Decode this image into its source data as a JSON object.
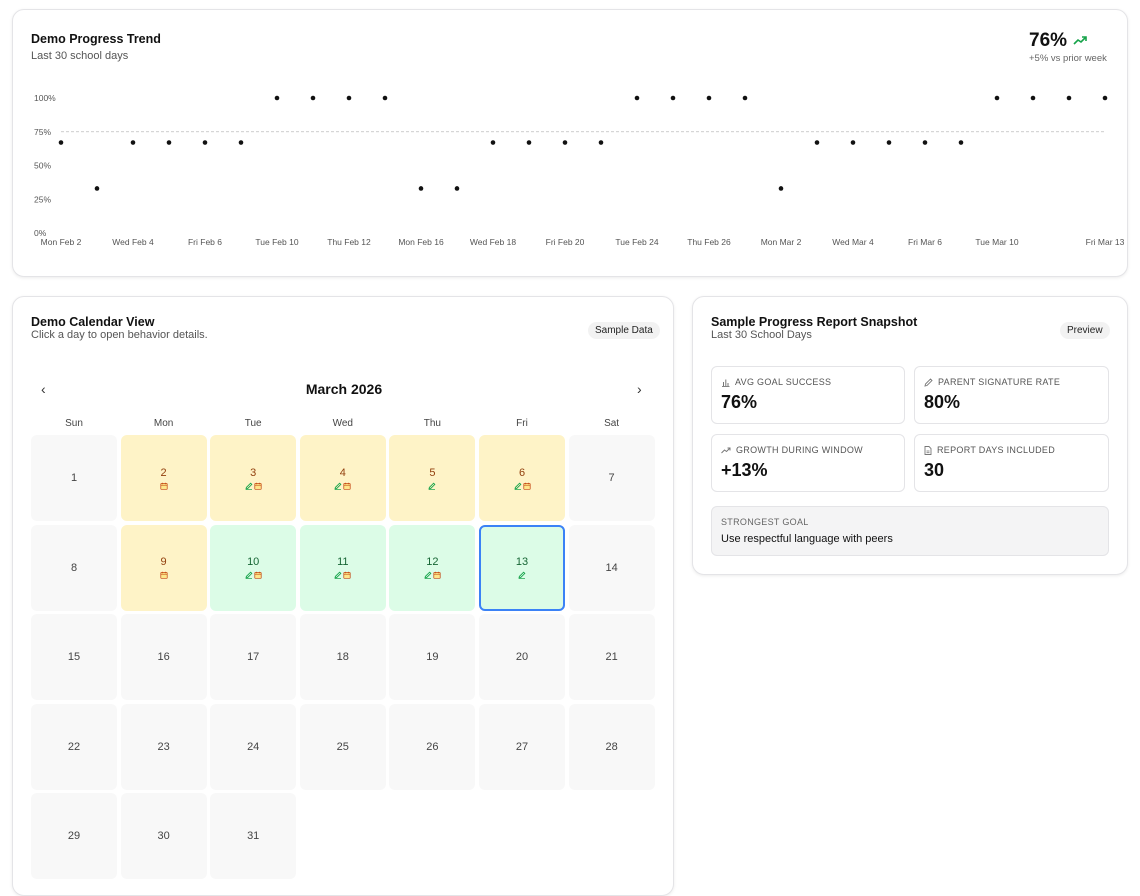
{
  "trend": {
    "title": "Demo Progress Trend",
    "subtitle": "Last 30 school days",
    "kpi_value": "76%",
    "kpi_delta": "+5% vs prior week",
    "trend_icon": "trending-up-icon",
    "colors": {
      "point": "#111111",
      "target_line": "#bdbdbd",
      "trend_up": "#16a34a"
    }
  },
  "chart_data": {
    "type": "scatter",
    "title": "Demo Progress Trend",
    "ylim": [
      0,
      100
    ],
    "yticks": [
      "0%",
      "25%",
      "50%",
      "75%",
      "100%"
    ],
    "target_line": 75,
    "grid": false,
    "x": [
      "Mon Feb 2",
      "Tue Feb 3",
      "Wed Feb 4",
      "Thu Feb 5",
      "Fri Feb 6",
      "Mon Feb 9",
      "Tue Feb 10",
      "Wed Feb 11",
      "Thu Feb 12",
      "Fri Feb 13",
      "Mon Feb 16",
      "Tue Feb 17",
      "Wed Feb 18",
      "Thu Feb 19",
      "Fri Feb 20",
      "Mon Feb 23",
      "Tue Feb 24",
      "Wed Feb 25",
      "Thu Feb 26",
      "Fri Feb 27",
      "Mon Mar 2",
      "Tue Mar 3",
      "Wed Mar 4",
      "Thu Mar 5",
      "Fri Mar 6",
      "Mon Mar 9",
      "Tue Mar 10",
      "Wed Mar 11",
      "Thu Mar 12",
      "Fri Mar 13"
    ],
    "x_tick_labels": [
      "Mon Feb 2",
      "Wed Feb 4",
      "Fri Feb 6",
      "Tue Feb 10",
      "Thu Feb 12",
      "Mon Feb 16",
      "Wed Feb 18",
      "Fri Feb 20",
      "Tue Feb 24",
      "Thu Feb 26",
      "Mon Mar 2",
      "Wed Mar 4",
      "Fri Mar 6",
      "Tue Mar 10",
      "Fri Mar 13"
    ],
    "values": [
      67,
      33,
      67,
      67,
      67,
      67,
      100,
      100,
      100,
      100,
      33,
      33,
      67,
      67,
      67,
      67,
      100,
      100,
      100,
      100,
      33,
      67,
      67,
      67,
      67,
      67,
      100,
      100,
      100,
      100
    ]
  },
  "calendar": {
    "title": "Demo Calendar View",
    "subtitle": "Click a day to open behavior details.",
    "badge": "Sample Data",
    "month": "March 2026",
    "prev": "‹",
    "next": "›",
    "weekdays": [
      "Sun",
      "Mon",
      "Tue",
      "Wed",
      "Thu",
      "Fri",
      "Sat"
    ],
    "first_weekday": 0,
    "days": [
      {
        "d": "1"
      },
      {
        "d": "2",
        "status": "yellow",
        "icons": [
          "calendar"
        ]
      },
      {
        "d": "3",
        "status": "yellow",
        "icons": [
          "pen",
          "calendar"
        ]
      },
      {
        "d": "4",
        "status": "yellow",
        "icons": [
          "pen",
          "calendar"
        ]
      },
      {
        "d": "5",
        "status": "yellow",
        "icons": [
          "pen"
        ]
      },
      {
        "d": "6",
        "status": "yellow",
        "icons": [
          "pen",
          "calendar"
        ]
      },
      {
        "d": "7"
      },
      {
        "d": "8"
      },
      {
        "d": "9",
        "status": "yellow",
        "icons": [
          "calendar"
        ]
      },
      {
        "d": "10",
        "status": "green",
        "icons": [
          "pen",
          "calendar"
        ]
      },
      {
        "d": "11",
        "status": "green",
        "icons": [
          "pen",
          "calendar"
        ]
      },
      {
        "d": "12",
        "status": "green",
        "icons": [
          "pen",
          "calendar"
        ]
      },
      {
        "d": "13",
        "status": "green",
        "icons": [
          "pen"
        ],
        "selected": true
      },
      {
        "d": "14"
      },
      {
        "d": "15"
      },
      {
        "d": "16"
      },
      {
        "d": "17"
      },
      {
        "d": "18"
      },
      {
        "d": "19"
      },
      {
        "d": "20"
      },
      {
        "d": "21"
      },
      {
        "d": "22"
      },
      {
        "d": "23"
      },
      {
        "d": "24"
      },
      {
        "d": "25"
      },
      {
        "d": "26"
      },
      {
        "d": "27"
      },
      {
        "d": "28"
      },
      {
        "d": "29"
      },
      {
        "d": "30"
      },
      {
        "d": "31"
      }
    ],
    "colors": {
      "yellow": "#fef3c7",
      "green": "#dcfce7",
      "selected_border": "#3b82f6"
    }
  },
  "report": {
    "title": "Sample Progress Report Snapshot",
    "subtitle": "Last 30 School Days",
    "badge": "Preview",
    "stats": [
      {
        "label": "AVG GOAL SUCCESS",
        "value": "76%",
        "icon": "bar-chart-icon"
      },
      {
        "label": "PARENT SIGNATURE RATE",
        "value": "80%",
        "icon": "pen-icon"
      },
      {
        "label": "GROWTH DURING WINDOW",
        "value": "+13%",
        "icon": "trending-up-icon"
      },
      {
        "label": "REPORT DAYS INCLUDED",
        "value": "30",
        "icon": "document-icon"
      }
    ],
    "strongest_goal_label": "STRONGEST GOAL",
    "strongest_goal": "Use respectful language with peers"
  }
}
